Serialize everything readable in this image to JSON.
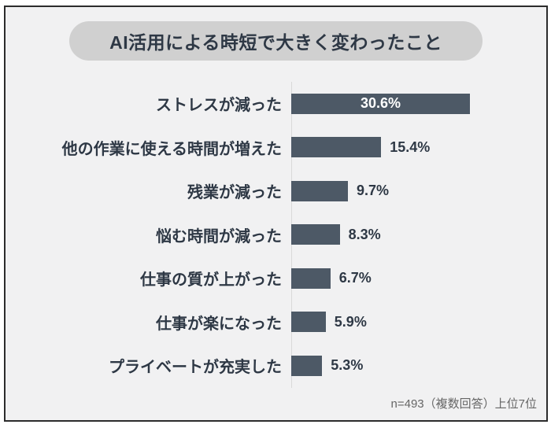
{
  "colors": {
    "background": "#f1f1f2",
    "frame_border": "#2c2c2c",
    "title_pill": "#d0d0d0",
    "bar": "#4d5966",
    "text": "#2e3845",
    "axis_line": "#d9d9d9",
    "note_text": "#666666",
    "value_inside": "#ffffff"
  },
  "chart_data": {
    "type": "bar",
    "orientation": "horizontal",
    "title": "AI活用による時短で大きく変わったこと",
    "categories": [
      "ストレスが減った",
      "他の作業に使える時間が増えた",
      "残業が減った",
      "悩む時間が減った",
      "仕事の質が上がった",
      "仕事が楽になった",
      "プライベートが充実した"
    ],
    "values": [
      30.6,
      15.4,
      9.7,
      8.3,
      6.7,
      5.9,
      5.3
    ],
    "value_suffix": "%",
    "value_label_position": [
      "inside",
      "outside",
      "outside",
      "outside",
      "outside",
      "outside",
      "outside"
    ],
    "note": "n=493（複数回答）上位7位",
    "xlim": [
      0,
      32
    ],
    "grid": false,
    "legend": false
  }
}
